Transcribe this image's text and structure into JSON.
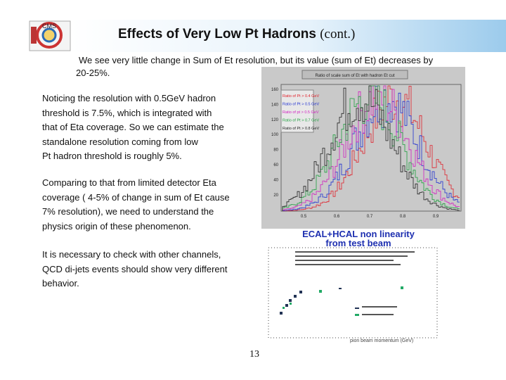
{
  "header": {
    "title": "Effects of Very Low Pt Hadrons",
    "title_suffix": "(cont.)",
    "logo": "CMS"
  },
  "intro": [
    "We see very little change in Sum of Et resolution, but its value (sum of Et) decreases by",
    "20-25%."
  ],
  "paragraphs": [
    [
      "Noticing the resolution with 0.5GeV hadron",
      "threshold is 7.5%, which is integrated with",
      "that of Eta coverage. So we can estimate the",
      "standalone resolution coming from low",
      "Pt hadron threshold is roughly 5%."
    ],
    [
      "Comparing to that from limited detector Eta",
      "coverage ( 4-5% of change in sum of Et cause",
      "7% resolution), we need to understand the",
      "physics origin of these phenomenon."
    ],
    [
      "It is necessary to check with other channels,",
      "QCD di-jets events should show very different",
      "behavior."
    ]
  ],
  "figures": {
    "histogram": {
      "title": "Ratio of scale sum of Et with hadron Et cut",
      "legend": [
        "Ratio of Pt > 0.4 GeV",
        "Ratio of Pt > 0.5 GeV",
        "Ratio of pt > 0.5 GeV",
        "Ratio of Pt > 0.7 GeV",
        "Ratio of Pt > 0.8 GeV"
      ],
      "yticks": [
        "160",
        "140",
        "120",
        "100",
        "80",
        "60",
        "40",
        "20"
      ],
      "xticks": [
        "0.5",
        "0.6",
        "0.7",
        "0.8",
        "0.9"
      ]
    },
    "nonlinearity": {
      "title": "ECAL+HCAL non linearity",
      "subtitle": "from test beam",
      "xlabel": "pion beam momentum (GeV)"
    }
  },
  "page_number": "13"
}
